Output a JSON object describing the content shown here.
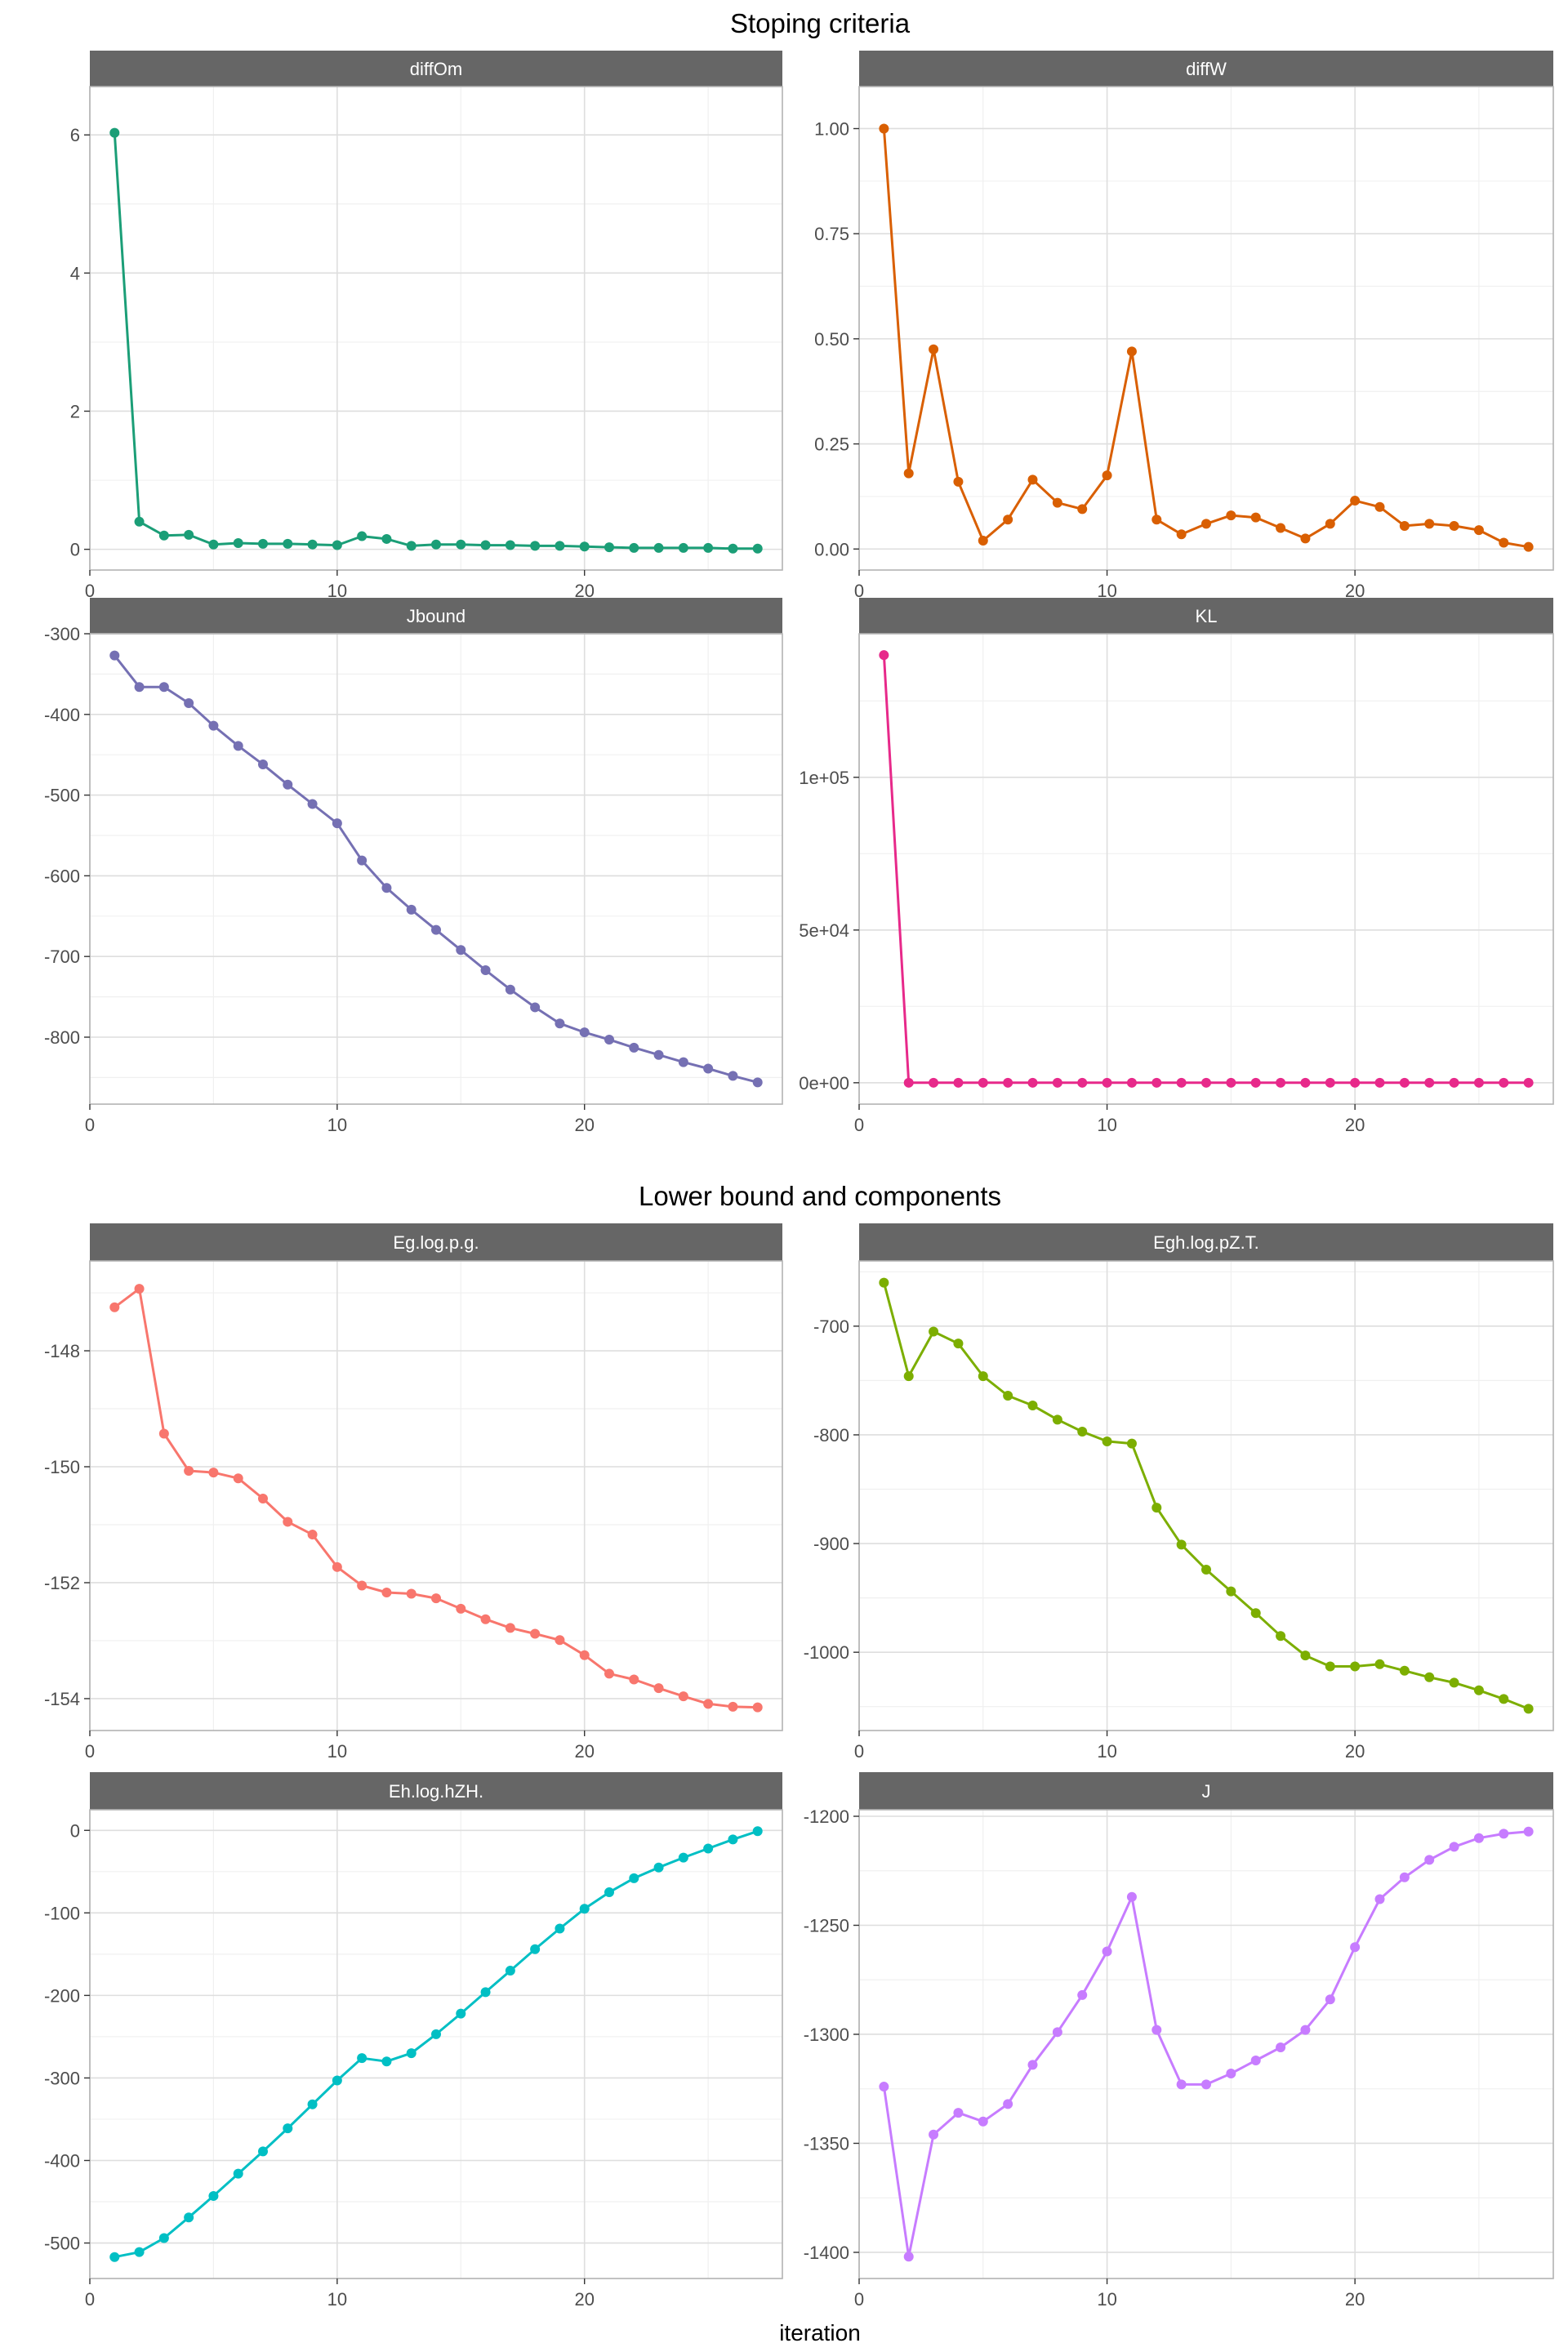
{
  "titles": {
    "top": "Stoping criteria",
    "bottom": "Lower bound and components"
  },
  "xlabel": "iteration",
  "chart_data": [
    {
      "type": "line",
      "panel": "diffOm",
      "group": "top",
      "color": "#1b9e77",
      "x": [
        1,
        2,
        3,
        4,
        5,
        6,
        7,
        8,
        9,
        10,
        11,
        12,
        13,
        14,
        15,
        16,
        17,
        18,
        19,
        20,
        21,
        22,
        23,
        24,
        25,
        26,
        27
      ],
      "values": [
        6.03,
        0.4,
        0.2,
        0.21,
        0.07,
        0.09,
        0.08,
        0.08,
        0.07,
        0.06,
        0.19,
        0.15,
        0.05,
        0.07,
        0.07,
        0.06,
        0.06,
        0.05,
        0.05,
        0.04,
        0.03,
        0.02,
        0.02,
        0.02,
        0.02,
        0.01,
        0.01
      ],
      "xlim": [
        0,
        28
      ],
      "ylim": [
        -0.3,
        6.7
      ],
      "yticks": [
        0,
        2,
        4,
        6
      ],
      "ytick_labels": [
        "0",
        "2",
        "4",
        "6"
      ],
      "xticks": [
        0,
        10,
        20
      ],
      "xtick_labels": [
        "0",
        "10",
        "20"
      ]
    },
    {
      "type": "line",
      "panel": "diffW",
      "group": "top",
      "color": "#d95f02",
      "x": [
        1,
        2,
        3,
        4,
        5,
        6,
        7,
        8,
        9,
        10,
        11,
        12,
        13,
        14,
        15,
        16,
        17,
        18,
        19,
        20,
        21,
        22,
        23,
        24,
        25,
        26,
        27
      ],
      "values": [
        1.0,
        0.18,
        0.475,
        0.16,
        0.02,
        0.07,
        0.165,
        0.11,
        0.095,
        0.175,
        0.47,
        0.07,
        0.035,
        0.06,
        0.08,
        0.075,
        0.05,
        0.025,
        0.06,
        0.115,
        0.1,
        0.055,
        0.06,
        0.055,
        0.045,
        0.015,
        0.005
      ],
      "xlim": [
        0,
        28
      ],
      "ylim": [
        -0.05,
        1.1
      ],
      "yticks": [
        0,
        0.25,
        0.5,
        0.75,
        1.0
      ],
      "ytick_labels": [
        "0.00",
        "0.25",
        "0.50",
        "0.75",
        "1.00"
      ],
      "xticks": [
        0,
        10,
        20
      ],
      "xtick_labels": [
        "0",
        "10",
        "20"
      ]
    },
    {
      "type": "line",
      "panel": "Jbound",
      "group": "top",
      "color": "#7570b3",
      "x": [
        1,
        2,
        3,
        4,
        5,
        6,
        7,
        8,
        9,
        10,
        11,
        12,
        13,
        14,
        15,
        16,
        17,
        18,
        19,
        20,
        21,
        22,
        23,
        24,
        25,
        26,
        27
      ],
      "values": [
        -327,
        -366,
        -366,
        -386,
        -414,
        -439,
        -462,
        -487,
        -511,
        -535,
        -581,
        -615,
        -642,
        -667,
        -692,
        -717,
        -741,
        -763,
        -783,
        -794,
        -803,
        -813,
        -822,
        -831,
        -839,
        -848,
        -856
      ],
      "xlim": [
        0,
        28
      ],
      "ylim": [
        -883,
        -300
      ],
      "yticks": [
        -800,
        -700,
        -600,
        -500,
        -400,
        -300
      ],
      "ytick_labels": [
        "-800",
        "-700",
        "-600",
        "-500",
        "-400",
        "-300"
      ],
      "xticks": [
        0,
        10,
        20
      ],
      "xtick_labels": [
        "0",
        "10",
        "20"
      ]
    },
    {
      "type": "line",
      "panel": "KL",
      "group": "top",
      "color": "#e7298a",
      "x": [
        1,
        2,
        3,
        4,
        5,
        6,
        7,
        8,
        9,
        10,
        11,
        12,
        13,
        14,
        15,
        16,
        17,
        18,
        19,
        20,
        21,
        22,
        23,
        24,
        25,
        26,
        27
      ],
      "values": [
        140000,
        0,
        0,
        0,
        0,
        0,
        0,
        0,
        0,
        0,
        0,
        0,
        0,
        0,
        0,
        0,
        0,
        0,
        0,
        0,
        0,
        0,
        0,
        0,
        0,
        0,
        0
      ],
      "xlim": [
        0,
        28
      ],
      "ylim": [
        -7000,
        147000
      ],
      "yticks": [
        0,
        50000,
        100000
      ],
      "ytick_labels": [
        "0e+00",
        "5e+04",
        "1e+05"
      ],
      "xticks": [
        0,
        10,
        20
      ],
      "xtick_labels": [
        "0",
        "10",
        "20"
      ]
    },
    {
      "type": "line",
      "panel": "Eg.log.p.g.",
      "group": "bottom",
      "color": "#f8766d",
      "x": [
        1,
        2,
        3,
        4,
        5,
        6,
        7,
        8,
        9,
        10,
        11,
        12,
        13,
        14,
        15,
        16,
        17,
        18,
        19,
        20,
        21,
        22,
        23,
        24,
        25,
        26,
        27
      ],
      "values": [
        -147.25,
        -146.93,
        -149.43,
        -150.07,
        -150.1,
        -150.2,
        -150.55,
        -150.95,
        -151.17,
        -151.73,
        -152.05,
        -152.17,
        -152.19,
        -152.27,
        -152.45,
        -152.63,
        -152.78,
        -152.88,
        -152.99,
        -153.25,
        -153.57,
        -153.67,
        -153.82,
        -153.96,
        -154.09,
        -154.14,
        -154.15
      ],
      "xlim": [
        0,
        28
      ],
      "ylim": [
        -154.55,
        -146.45
      ],
      "yticks": [
        -154,
        -152,
        -150,
        -148
      ],
      "ytick_labels": [
        "-154",
        "-152",
        "-150",
        "-148"
      ],
      "xticks": [
        0,
        10,
        20
      ],
      "xtick_labels": [
        "0",
        "10",
        "20"
      ]
    },
    {
      "type": "line",
      "panel": "Egh.log.pZ.T.",
      "group": "bottom",
      "color": "#7cae00",
      "x": [
        1,
        2,
        3,
        4,
        5,
        6,
        7,
        8,
        9,
        10,
        11,
        12,
        13,
        14,
        15,
        16,
        17,
        18,
        19,
        20,
        21,
        22,
        23,
        24,
        25,
        26,
        27
      ],
      "values": [
        -660,
        -746,
        -705,
        -716,
        -746,
        -764,
        -773,
        -786,
        -797,
        -806,
        -808,
        -867,
        -901,
        -924,
        -944,
        -964,
        -985,
        -1003,
        -1013,
        -1013,
        -1011,
        -1017,
        -1023,
        -1028,
        -1035,
        -1043,
        -1052
      ],
      "xlim": [
        0,
        28
      ],
      "ylim": [
        -1072,
        -640
      ],
      "yticks": [
        -1000,
        -900,
        -800,
        -700
      ],
      "ytick_labels": [
        "-1000",
        "-900",
        "-800",
        "-700"
      ],
      "xticks": [
        0,
        10,
        20
      ],
      "xtick_labels": [
        "0",
        "10",
        "20"
      ]
    },
    {
      "type": "line",
      "panel": "Eh.log.hZH.",
      "group": "bottom",
      "color": "#00bfc4",
      "x": [
        1,
        2,
        3,
        4,
        5,
        6,
        7,
        8,
        9,
        10,
        11,
        12,
        13,
        14,
        15,
        16,
        17,
        18,
        19,
        20,
        21,
        22,
        23,
        24,
        25,
        26,
        27
      ],
      "values": [
        -517,
        -511,
        -494,
        -469,
        -443,
        -416,
        -389,
        -361,
        -332,
        -303,
        -276,
        -280,
        -270,
        -247,
        -222,
        -196,
        -170,
        -144,
        -119,
        -95,
        -75,
        -58,
        -45,
        -33,
        -22,
        -11,
        -1
      ],
      "xlim": [
        0,
        28
      ],
      "ylim": [
        -543,
        25
      ],
      "yticks": [
        -500,
        -400,
        -300,
        -200,
        -100,
        0
      ],
      "ytick_labels": [
        "-500",
        "-400",
        "-300",
        "-200",
        "-100",
        "0"
      ],
      "xticks": [
        0,
        10,
        20
      ],
      "xtick_labels": [
        "0",
        "10",
        "20"
      ]
    },
    {
      "type": "line",
      "panel": "J",
      "group": "bottom",
      "color": "#c77cff",
      "x": [
        1,
        2,
        3,
        4,
        5,
        6,
        7,
        8,
        9,
        10,
        11,
        12,
        13,
        14,
        15,
        16,
        17,
        18,
        19,
        20,
        21,
        22,
        23,
        24,
        25,
        26,
        27
      ],
      "values": [
        -1324,
        -1402,
        -1346,
        -1336,
        -1340,
        -1332,
        -1314,
        -1299,
        -1282,
        -1262,
        -1237,
        -1298,
        -1323,
        -1323,
        -1318,
        -1312,
        -1306,
        -1298,
        -1284,
        -1260,
        -1238,
        -1228,
        -1220,
        -1214,
        -1210,
        -1208,
        -1207
      ],
      "xlim": [
        0,
        28
      ],
      "ylim": [
        -1412,
        -1197
      ],
      "yticks": [
        -1400,
        -1350,
        -1300,
        -1250,
        -1200
      ],
      "ytick_labels": [
        "-1400",
        "-1350",
        "-1300",
        "-1250",
        "-1200"
      ],
      "xticks": [
        0,
        10,
        20
      ],
      "xtick_labels": [
        "0",
        "10",
        "20"
      ]
    }
  ]
}
